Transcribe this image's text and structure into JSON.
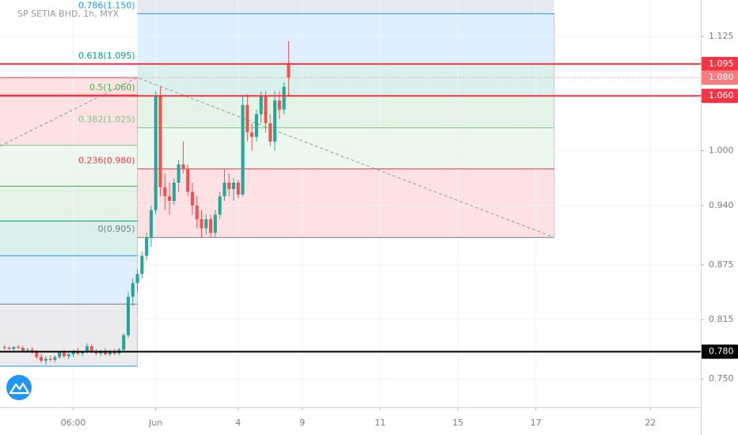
{
  "chart_data": {
    "type": "candlestick",
    "title": "SP SETIA BHD, 1h, MYX",
    "x": [
      0,
      1,
      2,
      3,
      4,
      5,
      6,
      7,
      8,
      9,
      10,
      11,
      12,
      13,
      14,
      15,
      16,
      17,
      18,
      19,
      20,
      21,
      22,
      23,
      24,
      25,
      26,
      27,
      28,
      29,
      30,
      31,
      32,
      33,
      34,
      35,
      36,
      37,
      38,
      39,
      40,
      41,
      42,
      43,
      44,
      45,
      46,
      47,
      48,
      49,
      50,
      51,
      52,
      53,
      54,
      55,
      56,
      57,
      58,
      59,
      60,
      61,
      62
    ],
    "open": [
      0.785,
      0.784,
      0.783,
      0.785,
      0.784,
      0.781,
      0.782,
      0.779,
      0.774,
      0.77,
      0.772,
      0.771,
      0.774,
      0.779,
      0.775,
      0.777,
      0.78,
      0.778,
      0.78,
      0.786,
      0.78,
      0.778,
      0.781,
      0.777,
      0.78,
      0.778,
      0.782,
      0.798,
      0.84,
      0.855,
      0.865,
      0.885,
      0.905,
      0.935,
      1.06,
      0.96,
      0.95,
      0.945,
      0.965,
      0.985,
      0.98,
      0.955,
      0.94,
      0.925,
      0.915,
      0.925,
      0.91,
      0.93,
      0.95,
      0.965,
      0.958,
      0.965,
      0.952,
      1.05,
      1.02,
      1.015,
      1.04,
      1.06,
      1.03,
      1.01,
      1.055,
      1.045,
      1.095
    ],
    "high": [
      0.787,
      0.786,
      0.786,
      0.787,
      0.786,
      0.784,
      0.785,
      0.782,
      0.778,
      0.775,
      0.776,
      0.776,
      0.781,
      0.782,
      0.779,
      0.782,
      0.784,
      0.781,
      0.789,
      0.788,
      0.783,
      0.782,
      0.784,
      0.782,
      0.783,
      0.784,
      0.8,
      0.845,
      0.86,
      0.87,
      0.89,
      0.91,
      0.94,
      1.065,
      1.07,
      0.975,
      0.965,
      0.97,
      0.99,
      1.01,
      0.985,
      0.965,
      0.95,
      0.935,
      0.93,
      0.93,
      0.935,
      0.955,
      0.98,
      0.975,
      0.97,
      0.968,
      1.06,
      1.062,
      1.03,
      1.045,
      1.065,
      1.065,
      1.04,
      1.065,
      1.065,
      1.075,
      1.12
    ],
    "low": [
      0.782,
      0.782,
      0.781,
      0.783,
      0.78,
      0.779,
      0.778,
      0.772,
      0.768,
      0.766,
      0.769,
      0.768,
      0.772,
      0.773,
      0.772,
      0.774,
      0.776,
      0.775,
      0.778,
      0.778,
      0.776,
      0.775,
      0.776,
      0.775,
      0.776,
      0.776,
      0.779,
      0.795,
      0.83,
      0.845,
      0.86,
      0.88,
      0.895,
      0.93,
      0.95,
      0.935,
      0.93,
      0.94,
      0.955,
      0.975,
      0.95,
      0.93,
      0.915,
      0.905,
      0.908,
      0.905,
      0.905,
      0.925,
      0.945,
      0.95,
      0.945,
      0.948,
      0.95,
      1.01,
      1.0,
      1.01,
      1.03,
      1.02,
      1.005,
      1.0,
      1.035,
      1.04,
      1.06
    ],
    "close": [
      0.784,
      0.783,
      0.785,
      0.784,
      0.781,
      0.782,
      0.779,
      0.774,
      0.77,
      0.772,
      0.771,
      0.774,
      0.779,
      0.775,
      0.777,
      0.78,
      0.778,
      0.78,
      0.786,
      0.78,
      0.778,
      0.781,
      0.777,
      0.78,
      0.778,
      0.782,
      0.798,
      0.84,
      0.855,
      0.865,
      0.885,
      0.905,
      0.935,
      1.06,
      0.96,
      0.95,
      0.945,
      0.965,
      0.985,
      0.98,
      0.955,
      0.94,
      0.925,
      0.915,
      0.925,
      0.91,
      0.93,
      0.95,
      0.965,
      0.958,
      0.965,
      0.952,
      1.05,
      1.02,
      1.015,
      1.04,
      1.06,
      1.03,
      1.01,
      1.055,
      1.045,
      1.07,
      1.08
    ],
    "up_color": "#26a69a",
    "down_color": "#ef5350",
    "xlim": [
      -1,
      152
    ],
    "xticks": [
      {
        "value": 15,
        "label": "06:00"
      },
      {
        "value": 33,
        "label": "Jun"
      },
      {
        "value": 51,
        "label": "4"
      },
      {
        "value": 65,
        "label": "9"
      },
      {
        "value": 82,
        "label": "11"
      },
      {
        "value": 99,
        "label": "15"
      },
      {
        "value": 116,
        "label": "17"
      },
      {
        "value": 141,
        "label": "22"
      }
    ],
    "ylim": [
      0.719,
      1.165
    ],
    "yticks": [
      1.125,
      {
        "value": 1,
        "label": "1.000"
      },
      {
        "value": 0.94,
        "label": "0.940"
      },
      0.875,
      0.815,
      {
        "value": 0.75,
        "label": "0.750"
      }
    ],
    "grid": true,
    "price_lines": [
      {
        "value": 1.095,
        "label": "1.095",
        "color": "#f23645",
        "style": "solid"
      },
      {
        "value": 1.08,
        "label": "1.080",
        "color": "#f77c80",
        "style": "dotted"
      },
      {
        "value": 1.06,
        "label": "1.060",
        "color": "#f23645",
        "style": "solid"
      },
      {
        "value": 0.78,
        "label": "0.780",
        "color": "#000000",
        "style": "solid"
      }
    ],
    "fib_retracements": [
      {
        "x_start": 29,
        "x_end": 120,
        "levels": [
          {
            "label": "0.786(1.150)",
            "price": 1.15,
            "color": "#2196f3"
          },
          {
            "label": "0.618(1.095)",
            "price": 1.095,
            "color": "#089981"
          },
          {
            "label": "0.5(1.060)",
            "price": 1.06,
            "color": "#4caf50"
          },
          {
            "label": "0.382(1.025)",
            "price": 1.025,
            "color": "#81c784"
          },
          {
            "label": "0.236(0.980)",
            "price": 0.98,
            "color": "#f23645"
          },
          {
            "label": "0(0.905)",
            "price": 0.905,
            "color": "#787b86"
          }
        ]
      },
      {
        "x_start": -1,
        "x_end": 29,
        "levels": [
          {
            "price": 1.08,
            "color": "#f23645"
          },
          {
            "price": 1.061,
            "color": "#f23645"
          },
          {
            "price": 1.006,
            "color": "#81c784"
          },
          {
            "price": 0.961,
            "color": "#4caf50"
          },
          {
            "price": 0.923,
            "color": "#089981"
          },
          {
            "price": 0.885,
            "color": "#2196f3"
          },
          {
            "price": 0.832,
            "color": "#787b86"
          },
          {
            "price": 0.764,
            "color": "#2196f3"
          }
        ]
      }
    ],
    "trend_line": {
      "x": [
        -1,
        29,
        120
      ],
      "y": [
        1.005,
        1.08,
        0.905
      ]
    }
  }
}
